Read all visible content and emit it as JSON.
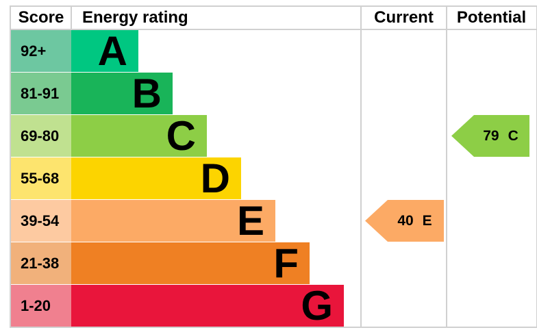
{
  "header": {
    "score": "Score",
    "energy_rating": "Energy rating",
    "current": "Current",
    "potential": "Potential"
  },
  "bands": [
    {
      "score": "92+",
      "letter": "A",
      "bar_color": "#00c781",
      "score_color": "#6dc7a1"
    },
    {
      "score": "81-91",
      "letter": "B",
      "bar_color": "#19b459",
      "score_color": "#7aca91"
    },
    {
      "score": "69-80",
      "letter": "C",
      "bar_color": "#8dce46",
      "score_color": "#c0e190"
    },
    {
      "score": "55-68",
      "letter": "D",
      "bar_color": "#fcd400",
      "score_color": "#fde46e"
    },
    {
      "score": "39-54",
      "letter": "E",
      "bar_color": "#fcaa65",
      "score_color": "#fdcaa1"
    },
    {
      "score": "21-38",
      "letter": "F",
      "bar_color": "#ef8023",
      "score_color": "#f1b17b"
    },
    {
      "score": "1-20",
      "letter": "G",
      "bar_color": "#e9153b",
      "score_color": "#f0808f"
    }
  ],
  "current": {
    "value": "40",
    "letter": "E",
    "band_index": 4,
    "color": "#fcaa65"
  },
  "potential": {
    "value": "79",
    "letter": "C",
    "band_index": 2,
    "color": "#8dce46"
  },
  "border_color": "#d0d0d0",
  "chart_data": {
    "type": "bar",
    "title": "Energy rating",
    "categories": [
      "A",
      "B",
      "C",
      "D",
      "E",
      "F",
      "G"
    ],
    "score_ranges": [
      "92+",
      "81-91",
      "69-80",
      "55-68",
      "39-54",
      "21-38",
      "1-20"
    ],
    "bar_lengths_relative": [
      1,
      2,
      3,
      4,
      5,
      6,
      7
    ],
    "band_colors": [
      "#00c781",
      "#19b459",
      "#8dce46",
      "#fcd400",
      "#fcaa65",
      "#ef8023",
      "#e9153b"
    ],
    "columns": [
      "Score",
      "Energy rating",
      "Current",
      "Potential"
    ],
    "current_rating": {
      "score": 40,
      "band": "E"
    },
    "potential_rating": {
      "score": 79,
      "band": "C"
    },
    "legend_position": "none",
    "grid": false
  }
}
